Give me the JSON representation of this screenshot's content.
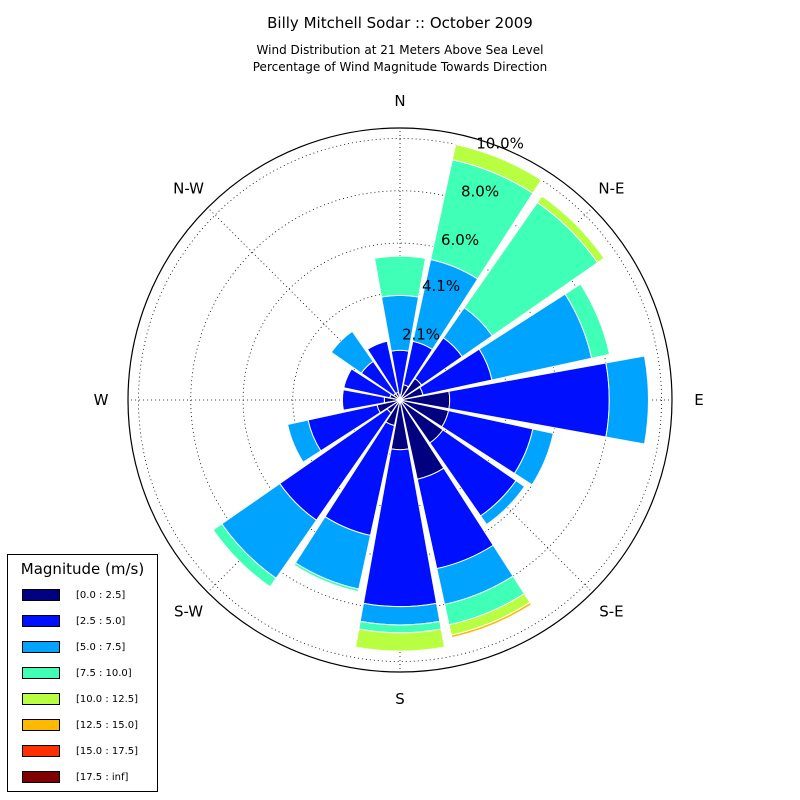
{
  "chart_data": {
    "type": "windrose",
    "title": "Billy Mitchell Sodar :: October 2009",
    "subtitle_lines": [
      "Wind Distribution at 21 Meters Above Sea Level",
      "Percentage of Wind Magnitude Towards Direction"
    ],
    "directions": [
      "N",
      "NNE",
      "NE",
      "ENE",
      "E",
      "ESE",
      "SE",
      "SSE",
      "S",
      "SSW",
      "SW",
      "WSW",
      "W",
      "WNW",
      "NW",
      "NNW"
    ],
    "direction_labels": [
      "E",
      "N-E",
      "N",
      "N-W",
      "W",
      "S-W",
      "S",
      "S-E"
    ],
    "radial_ticks": [
      "2.1%",
      "4.1%",
      "6.0%",
      "8.0%",
      "10.0%"
    ],
    "rmax": 10.4,
    "legend_title": "Magnitude (m/s)",
    "bins": [
      {
        "name": "[0.0 : 2.5]",
        "color": "#000080"
      },
      {
        "name": "[2.5 : 5.0]",
        "color": "#0010ff"
      },
      {
        "name": "[5.0 : 7.5]",
        "color": "#00a4ff"
      },
      {
        "name": "[7.5 : 10.0]",
        "color": "#40ffb7"
      },
      {
        "name": "[10.0 : 12.5]",
        "color": "#b7ff40"
      },
      {
        "name": "[12.5 : 15.0]",
        "color": "#ffb900"
      },
      {
        "name": "[15.0 : 17.5]",
        "color": "#ff3000"
      },
      {
        "name": "[17.5 : inf]",
        "color": "#800000"
      }
    ],
    "cumulative_values": {
      "N": [
        0.2,
        1.9,
        4.0,
        5.5,
        5.5,
        5.5,
        5.5,
        5.5
      ],
      "NNE": [
        0.6,
        2.3,
        5.5,
        9.4,
        10.0,
        10.0,
        10.0,
        10.0
      ],
      "NE": [
        1.0,
        2.9,
        4.3,
        9.2,
        9.5,
        9.5,
        9.5,
        9.5
      ],
      "ENE": [
        0.9,
        3.6,
        7.5,
        8.2,
        8.2,
        8.2,
        8.2,
        8.2
      ],
      "E": [
        1.9,
        8.0,
        9.5,
        9.5,
        9.5,
        9.5,
        9.5,
        9.5
      ],
      "ESE": [
        1.9,
        5.2,
        6.0,
        6.0,
        6.0,
        6.0,
        6.0,
        6.0
      ],
      "SE": [
        2.0,
        5.4,
        5.8,
        5.8,
        5.8,
        5.8,
        5.8,
        5.8
      ],
      "SSE": [
        3.1,
        6.6,
        8.0,
        8.8,
        9.2,
        9.3,
        9.3,
        9.3
      ],
      "S": [
        1.9,
        7.9,
        8.6,
        8.9,
        9.6,
        9.6,
        9.6,
        9.6
      ],
      "SSW": [
        1.0,
        5.3,
        7.4,
        7.5,
        7.5,
        7.5,
        7.5,
        7.5
      ],
      "SW": [
        0.6,
        5.6,
        8.3,
        8.7,
        8.7,
        8.7,
        8.7,
        8.7
      ],
      "WSW": [
        0.9,
        3.6,
        4.4,
        4.4,
        4.4,
        4.4,
        4.4,
        4.4
      ],
      "W": [
        0.6,
        2.2,
        2.2,
        2.2,
        2.2,
        2.2,
        2.2,
        2.2
      ],
      "WNW": [
        0.4,
        2.2,
        2.2,
        2.2,
        2.2,
        2.2,
        2.2,
        2.2
      ],
      "NW": [
        0.3,
        1.8,
        3.2,
        3.2,
        3.2,
        3.2,
        3.2,
        3.2
      ],
      "NNW": [
        0.3,
        2.3,
        2.3,
        2.3,
        2.3,
        2.3,
        2.3,
        2.3
      ]
    }
  }
}
